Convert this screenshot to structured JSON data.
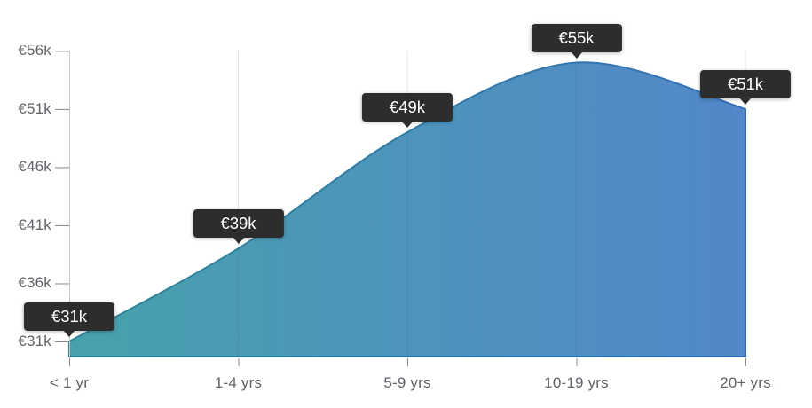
{
  "chart_data": {
    "type": "area",
    "categories": [
      "< 1 yr",
      "1-4 yrs",
      "5-9 yrs",
      "10-19 yrs",
      "20+ yrs"
    ],
    "values": [
      31000,
      39000,
      49000,
      55000,
      51000
    ],
    "point_labels": [
      "€31k",
      "€39k",
      "€49k",
      "€55k",
      "€51k"
    ],
    "x_axis": {
      "tick_labels": [
        "< 1 yr",
        "1-4 yrs",
        "5-9 yrs",
        "10-19 yrs",
        "20+ yrs"
      ]
    },
    "y_axis": {
      "tick_labels": [
        "€31k",
        "€36k",
        "€41k",
        "€46k",
        "€51k",
        "€56k"
      ],
      "tick_values": [
        31000,
        36000,
        41000,
        46000,
        51000,
        56000
      ],
      "min": 29700,
      "max": 56000
    },
    "ylim": [
      29700,
      56000
    ],
    "grid": "vertical",
    "legend": "none",
    "smoothing": "spline"
  },
  "colors": {
    "background": "#ffffff",
    "fill_gradient_start": "#47a1ac",
    "fill_gradient_end": "#5287c9",
    "stroke_gradient_start": "#2c8595",
    "stroke_gradient_end": "#3470b8",
    "grid_line": "rgba(60,64,67,0.15)",
    "axis_line": "#c4c7cc",
    "tick_mark": "#85898f",
    "axis_label": "#5f6368",
    "tooltip_bg": "#2d2d2d",
    "tooltip_text": "#ffffff"
  }
}
